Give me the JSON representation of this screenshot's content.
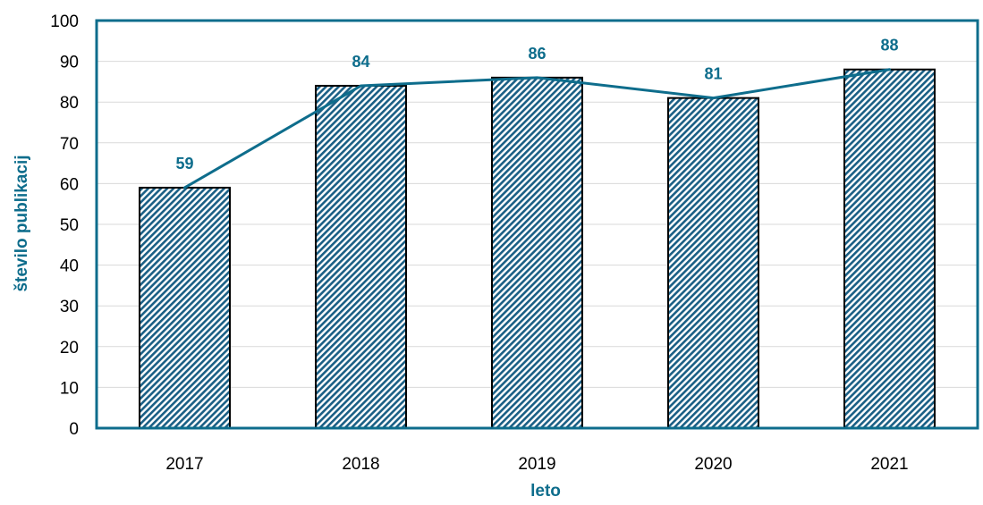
{
  "chart_data": {
    "type": "bar",
    "categories": [
      "2017",
      "2018",
      "2019",
      "2020",
      "2021"
    ],
    "values": [
      59,
      84,
      86,
      81,
      88
    ],
    "data_labels": [
      "59",
      "84",
      "86",
      "81",
      "88"
    ],
    "line_overlay": true,
    "xlabel": "leto",
    "ylabel": "število publikacij",
    "ylim": [
      0,
      100
    ],
    "yticks": [
      "0",
      "10",
      "20",
      "30",
      "40",
      "50",
      "60",
      "70",
      "80",
      "90",
      "100"
    ],
    "grid": true,
    "colors": {
      "accent": "#0e6d8c",
      "bar_hatch": "#1a5f85",
      "bar_outline": "#000000",
      "grid": "#d9d9d9"
    }
  }
}
